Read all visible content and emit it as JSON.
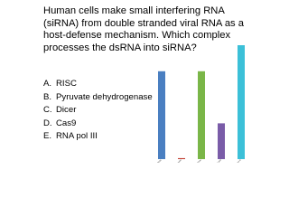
{
  "question": "Human cells make small interfering RNA (siRNA) from double stranded viral RNA as a host-defense mechanism.  Which complex processes the dsRNA into siRNA?",
  "options": [
    {
      "letter": "A.",
      "text": "RISC"
    },
    {
      "letter": "B.",
      "text": "Pyruvate dehydrogenase"
    },
    {
      "letter": "C.",
      "text": "Dicer"
    },
    {
      "letter": "D.",
      "text": "Cas9"
    },
    {
      "letter": "E.",
      "text": "RNA pol III"
    }
  ],
  "chart_data": {
    "type": "bar",
    "categories": [
      "RISC",
      "Pyruvate dehydrogenase",
      "Dicer",
      "Cas9",
      "RNA pol III"
    ],
    "values": [
      27,
      0.3,
      27,
      11,
      35
    ],
    "colors": [
      "#4a7fc1",
      "#c0392b",
      "#7ab648",
      "#7a5ca8",
      "#3cc0d8"
    ],
    "ylim": [
      0,
      35
    ]
  }
}
